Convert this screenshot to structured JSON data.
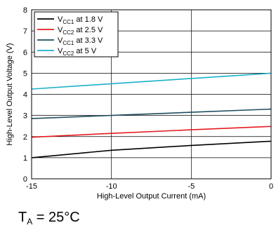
{
  "caption": {
    "main": "T",
    "sub": "A",
    "rest": " = 25°C"
  },
  "chart_data": {
    "type": "line",
    "xlabel": "High-Level Output Current (mA)",
    "ylabel": "High-Level Output Voltage (V)",
    "xlim": [
      -15,
      0
    ],
    "ylim": [
      0,
      8
    ],
    "xticks": [
      -15,
      -10,
      -5,
      0
    ],
    "xtick_labels": [
      "-15",
      "-10",
      "-5",
      "0"
    ],
    "yticks": [
      0,
      1,
      2,
      3,
      4,
      5,
      6,
      7,
      8
    ],
    "ytick_labels": [
      "0",
      "1",
      "2",
      "3",
      "4",
      "5",
      "6",
      "7",
      "8"
    ],
    "grid": true,
    "legend_position": "top-left",
    "series": [
      {
        "name": "VCC1 at 1.8 V",
        "label_main": "V",
        "label_sub": "CC1",
        "label_rest": " at 1.8 V",
        "color": "#000000",
        "x": [
          -15,
          -10,
          -5,
          0
        ],
        "y": [
          1.0,
          1.35,
          1.58,
          1.78
        ]
      },
      {
        "name": "VCC2 at 2.5 V",
        "label_main": "V",
        "label_sub": "CC2",
        "label_rest": " at 2.5 V",
        "color": "#e31b23",
        "x": [
          -15,
          -10,
          -5,
          0
        ],
        "y": [
          1.97,
          2.15,
          2.32,
          2.48
        ]
      },
      {
        "name": "VCC1 at 3.3 V",
        "label_main": "V",
        "label_sub": "CC1",
        "label_rest": " at 3.3 V",
        "color": "#1f4e5f",
        "x": [
          -15,
          -10,
          -5,
          0
        ],
        "y": [
          2.85,
          3.0,
          3.15,
          3.3
        ]
      },
      {
        "name": "VCC2 at 5 V",
        "label_main": "V",
        "label_sub": "CC2",
        "label_rest": " at 5 V",
        "color": "#1ab0c8",
        "x": [
          -15,
          -10,
          -5,
          0
        ],
        "y": [
          4.25,
          4.5,
          4.75,
          5.0
        ]
      }
    ]
  }
}
